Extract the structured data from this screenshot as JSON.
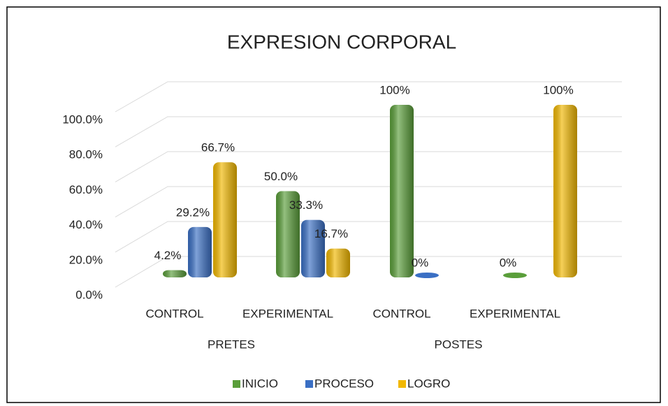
{
  "chart_data": {
    "type": "bar3d",
    "title": "EXPRESION CORPORAL",
    "categories": [
      "CONTROL",
      "EXPERIMENTAL",
      "CONTROL",
      "EXPERIMENTAL"
    ],
    "groups": [
      "PRETES",
      "POSTES"
    ],
    "series": [
      {
        "name": "INICIO",
        "color": "#5a9e3a",
        "values": [
          4.2,
          50.0,
          100,
          0
        ],
        "value_labels": [
          "4.2%",
          "50.0%",
          "100%",
          "0%"
        ]
      },
      {
        "name": "PROCESO",
        "color": "#3a6fc4",
        "values": [
          29.2,
          33.3,
          0,
          null
        ],
        "value_labels": [
          "29.2%",
          "33.3%",
          "0%",
          null
        ]
      },
      {
        "name": "LOGRO",
        "color": "#f2b800",
        "values": [
          66.7,
          16.7,
          null,
          100
        ],
        "value_labels": [
          "66.7%",
          "16.7%",
          null,
          "100%"
        ]
      }
    ],
    "ylim": [
      0,
      100
    ],
    "yticks": [
      {
        "value": 0,
        "label": "0.0%"
      },
      {
        "value": 20,
        "label": "20.0%"
      },
      {
        "value": 40,
        "label": "40.0%"
      },
      {
        "value": 60,
        "label": "60.0%"
      },
      {
        "value": 80,
        "label": "80.0%"
      },
      {
        "value": 100,
        "label": "100.0%"
      }
    ],
    "grid": true,
    "legend": "bottom"
  }
}
